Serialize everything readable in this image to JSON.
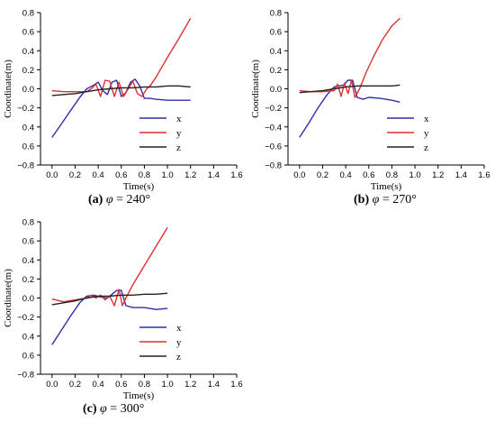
{
  "chart_data": [
    {
      "type": "line",
      "caption": {
        "label": "(a)",
        "symbol": "φ",
        "value": "= 240°"
      },
      "xlabel": "Time(s)",
      "ylabel": "Coordinate(m)",
      "xlim": [
        -0.1,
        1.6
      ],
      "ylim": [
        -0.8,
        0.8
      ],
      "xticks": [
        "0.0",
        "0.2",
        "0.4",
        "0.6",
        "0.8",
        "1.0",
        "1.2",
        "1.4",
        "1.6"
      ],
      "yticks": [
        "0.8",
        "0.6",
        "0.4",
        "0.2",
        "0.0",
        "−0.2",
        "0.4",
        "0.6",
        "−0.8"
      ],
      "legend_position": "bottom-right",
      "series": [
        {
          "name": "x",
          "color": "#2f2fa8",
          "x": [
            0.0,
            0.08,
            0.16,
            0.24,
            0.3,
            0.35,
            0.4,
            0.44,
            0.48,
            0.52,
            0.56,
            0.6,
            0.64,
            0.68,
            0.72,
            0.76,
            0.8,
            0.85,
            0.9,
            1.0,
            1.1,
            1.2
          ],
          "y": [
            -0.51,
            -0.37,
            -0.23,
            -0.09,
            0.0,
            0.03,
            0.07,
            -0.02,
            -0.06,
            0.07,
            0.09,
            -0.08,
            -0.04,
            0.07,
            0.1,
            0.03,
            -0.1,
            -0.1,
            -0.11,
            -0.12,
            -0.12,
            -0.12
          ]
        },
        {
          "name": "y",
          "color": "#e03030",
          "x": [
            0.0,
            0.1,
            0.2,
            0.3,
            0.34,
            0.38,
            0.42,
            0.46,
            0.5,
            0.54,
            0.58,
            0.62,
            0.66,
            0.7,
            0.74,
            0.78,
            0.82,
            0.85,
            0.9,
            1.0,
            1.1,
            1.2
          ],
          "y": [
            -0.02,
            -0.03,
            -0.03,
            -0.03,
            0.0,
            0.05,
            -0.08,
            0.09,
            0.08,
            -0.08,
            0.07,
            -0.08,
            0.0,
            0.08,
            -0.05,
            -0.08,
            0.0,
            0.03,
            0.12,
            0.33,
            0.53,
            0.74
          ]
        },
        {
          "name": "z",
          "color": "#222222",
          "x": [
            0.0,
            0.2,
            0.3,
            0.4,
            0.5,
            0.6,
            0.7,
            0.8,
            0.9,
            1.0,
            1.1,
            1.2
          ],
          "y": [
            -0.07,
            -0.05,
            -0.03,
            -0.01,
            0.0,
            0.01,
            0.01,
            0.02,
            0.02,
            0.03,
            0.03,
            0.02
          ]
        }
      ]
    },
    {
      "type": "line",
      "caption": {
        "label": "(b)",
        "symbol": "φ",
        "value": "= 270°"
      },
      "xlabel": "Time(s)",
      "ylabel": "Coordinate(m)",
      "xlim": [
        -0.1,
        1.6
      ],
      "ylim": [
        -0.8,
        0.8
      ],
      "xticks": [
        "0.0",
        "0.2",
        "0.4",
        "0.6",
        "0.8",
        "1.0",
        "1.2",
        "1.4",
        "1.6"
      ],
      "yticks": [
        "0.8",
        "0.6",
        "0.4",
        "0.2",
        "0.0",
        "−0.2",
        "−0.4",
        "−0.6",
        "−0.8"
      ],
      "legend_position": "bottom-right",
      "series": [
        {
          "name": "x",
          "color": "#2f2fa8",
          "x": [
            0.0,
            0.08,
            0.16,
            0.24,
            0.3,
            0.34,
            0.38,
            0.42,
            0.46,
            0.5,
            0.55,
            0.6,
            0.7,
            0.8,
            0.87
          ],
          "y": [
            -0.51,
            -0.36,
            -0.2,
            -0.06,
            0.02,
            0.03,
            0.04,
            0.09,
            0.09,
            -0.09,
            -0.11,
            -0.09,
            -0.1,
            -0.12,
            -0.14
          ]
        },
        {
          "name": "y",
          "color": "#e03030",
          "x": [
            0.0,
            0.1,
            0.2,
            0.3,
            0.33,
            0.36,
            0.39,
            0.42,
            0.45,
            0.48,
            0.52,
            0.58,
            0.65,
            0.72,
            0.8,
            0.87
          ],
          "y": [
            -0.02,
            -0.03,
            -0.03,
            -0.02,
            0.05,
            -0.08,
            0.06,
            -0.05,
            0.09,
            -0.09,
            0.0,
            0.18,
            0.36,
            0.52,
            0.66,
            0.74
          ]
        },
        {
          "name": "z",
          "color": "#222222",
          "x": [
            0.0,
            0.2,
            0.3,
            0.4,
            0.5,
            0.6,
            0.7,
            0.8,
            0.87
          ],
          "y": [
            -0.04,
            -0.02,
            0.0,
            0.02,
            0.03,
            0.03,
            0.03,
            0.03,
            0.04
          ]
        }
      ]
    },
    {
      "type": "line",
      "caption": {
        "label": "(c)",
        "symbol": "φ",
        "value": "= 300°"
      },
      "xlabel": "Time(s)",
      "ylabel": "Coordinate(m)",
      "xlim": [
        -0.1,
        1.6
      ],
      "ylim": [
        -0.8,
        0.8
      ],
      "xticks": [
        "0.0",
        "0.2",
        "0.4",
        "0.6",
        "0.8",
        "1.0",
        "1.2",
        "1.4",
        "1.6"
      ],
      "yticks": [
        "0.8",
        "0.6",
        "0.4",
        "0.2",
        "0.0",
        "−0.2",
        "0.4",
        "0.6",
        "−0.8"
      ],
      "legend_position": "bottom-right",
      "series": [
        {
          "name": "x",
          "color": "#2f2fa8",
          "x": [
            0.0,
            0.08,
            0.16,
            0.24,
            0.3,
            0.36,
            0.42,
            0.48,
            0.52,
            0.56,
            0.6,
            0.64,
            0.7,
            0.8,
            0.9,
            1.0
          ],
          "y": [
            -0.49,
            -0.34,
            -0.19,
            -0.05,
            0.02,
            0.03,
            0.01,
            0.0,
            0.04,
            0.08,
            0.08,
            -0.08,
            -0.1,
            -0.1,
            -0.12,
            -0.11
          ]
        },
        {
          "name": "y",
          "color": "#e03030",
          "x": [
            0.0,
            0.1,
            0.2,
            0.3,
            0.34,
            0.38,
            0.42,
            0.46,
            0.5,
            0.54,
            0.58,
            0.61,
            0.64,
            0.7,
            0.8,
            0.9,
            1.0
          ],
          "y": [
            -0.01,
            -0.04,
            -0.02,
            0.0,
            0.03,
            0.0,
            0.03,
            -0.02,
            0.02,
            -0.08,
            0.09,
            -0.08,
            0.0,
            0.14,
            0.34,
            0.54,
            0.74
          ]
        },
        {
          "name": "z",
          "color": "#222222",
          "x": [
            0.0,
            0.2,
            0.3,
            0.4,
            0.5,
            0.6,
            0.7,
            0.8,
            0.9,
            1.0
          ],
          "y": [
            -0.07,
            -0.03,
            0.0,
            0.02,
            0.02,
            0.03,
            0.03,
            0.04,
            0.04,
            0.05
          ]
        }
      ]
    }
  ]
}
